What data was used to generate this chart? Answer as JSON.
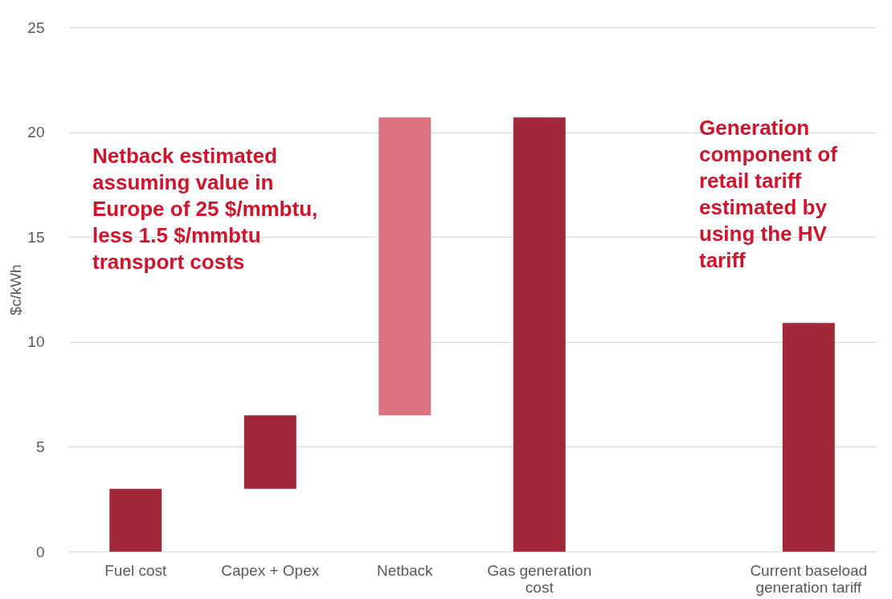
{
  "chart_data": {
    "type": "bar",
    "ylabel": "$c/kWh",
    "categories": [
      "Fuel cost",
      "Capex + Opex",
      "Netback",
      "Gas generation cost",
      null,
      "Current baseload generation tariff"
    ],
    "values": [
      3.0,
      3.5,
      14.2,
      20.7,
      null,
      10.9
    ],
    "base": [
      0,
      3.0,
      6.5,
      0,
      null,
      0
    ],
    "colors": [
      "#a12838",
      "#a12838",
      "#d9717e",
      "#a12838",
      null,
      "#a12838"
    ],
    "ylim": [
      0,
      25
    ],
    "yticks": [
      0,
      5,
      10,
      15,
      20,
      25
    ],
    "grid": "y",
    "annotations": [
      "Netback estimated assuming value in Europe of 25 $/mmbtu, less 1.5 $/mmbtu transport costs",
      "Generation component of retail tariff estimated by using the HV tariff"
    ]
  }
}
